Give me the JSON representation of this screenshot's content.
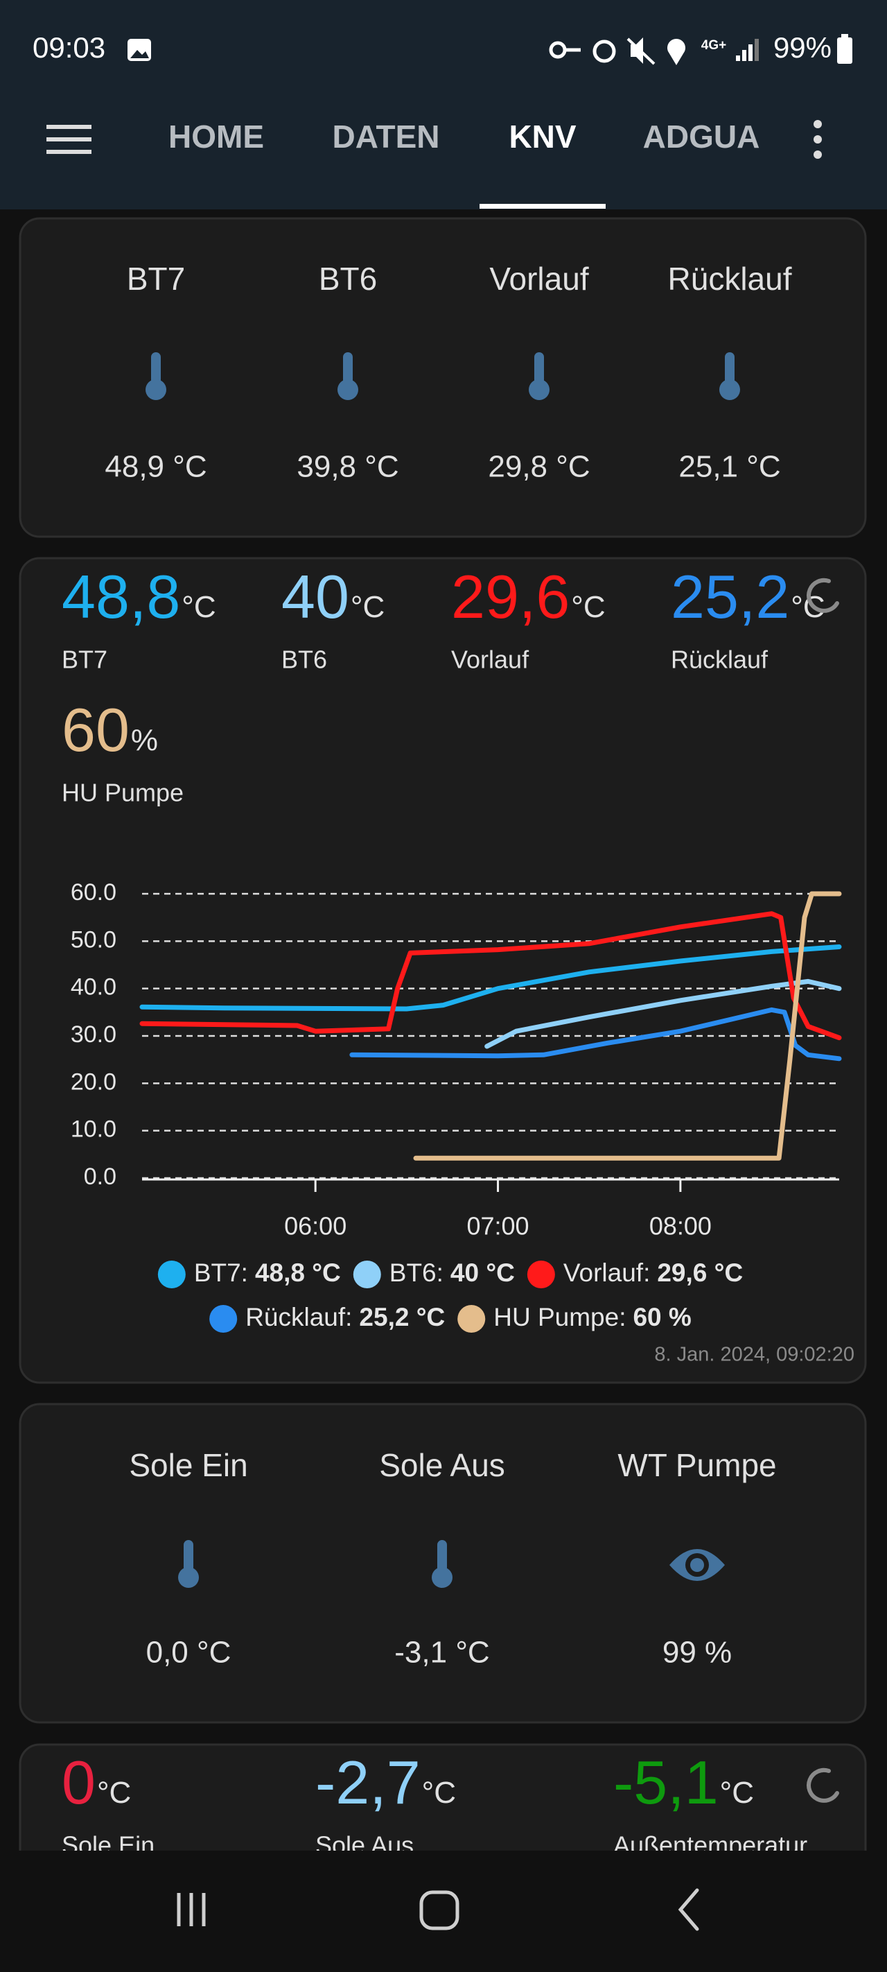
{
  "status_bar": {
    "time": "09:03",
    "network": "4G+",
    "battery": "99%"
  },
  "tabs": {
    "items": [
      "HOME",
      "DATEN",
      "KNV",
      "ADGUA"
    ],
    "active": 2
  },
  "sensor_card_1": {
    "items": [
      {
        "label": "BT7",
        "value": "48,9 °C",
        "icon": "thermometer"
      },
      {
        "label": "BT6",
        "value": "39,8 °C",
        "icon": "thermometer"
      },
      {
        "label": "Vorlauf",
        "value": "29,8 °C",
        "icon": "thermometer"
      },
      {
        "label": "Rücklauf",
        "value": "25,1 °C",
        "icon": "thermometer"
      }
    ]
  },
  "history_card_1": {
    "entities": [
      {
        "value": "48,8",
        "unit": "°C",
        "name": "BT7",
        "color": "#1eb0ef"
      },
      {
        "value": "40",
        "unit": "°C",
        "name": "BT6",
        "color": "#8fd0f8"
      },
      {
        "value": "29,6",
        "unit": "°C",
        "name": "Vorlauf",
        "color": "#ff1a1a"
      },
      {
        "value": "25,2",
        "unit": "°C",
        "name": "Rücklauf",
        "color": "#2a8cf0"
      },
      {
        "value": "60",
        "unit": "%",
        "name": "HU Pumpe",
        "color": "#e4bd8c"
      }
    ],
    "timestamp": "8. Jan. 2024, 09:02:20"
  },
  "chart_data": {
    "type": "line",
    "xlim": [
      5.05,
      8.87
    ],
    "xticks": [
      {
        "value": 6,
        "label": "06:00"
      },
      {
        "value": 7,
        "label": "07:00"
      },
      {
        "value": 8,
        "label": "08:00"
      }
    ],
    "ylim": [
      0,
      60
    ],
    "yticks": [
      {
        "value": 0,
        "label": "0.0"
      },
      {
        "value": 10,
        "label": "10.0"
      },
      {
        "value": 20,
        "label": "20.0"
      },
      {
        "value": 30,
        "label": "30.0"
      },
      {
        "value": 40,
        "label": "40.0"
      },
      {
        "value": 50,
        "label": "50.0"
      },
      {
        "value": 60,
        "label": "60.0"
      }
    ],
    "grid": true,
    "series": [
      {
        "name": "BT7:",
        "legend_value": "48,8 °C",
        "color": "#1eb0ef",
        "x": [
          5.05,
          5.5,
          6.0,
          6.5,
          6.7,
          7.0,
          7.5,
          8.0,
          8.5,
          8.87
        ],
        "values": [
          36.1,
          35.9,
          35.8,
          35.7,
          36.5,
          40.0,
          43.5,
          45.8,
          47.8,
          48.8
        ]
      },
      {
        "name": "BT6:",
        "legend_value": "40 °C",
        "color": "#8fd0f8",
        "x": [
          6.94,
          7.1,
          7.5,
          8.0,
          8.5,
          8.7,
          8.87
        ],
        "values": [
          27.8,
          31.0,
          34.0,
          37.5,
          40.5,
          41.5,
          40.0
        ]
      },
      {
        "name": "Vorlauf:",
        "legend_value": "29,6 °C",
        "color": "#ff1a1a",
        "x": [
          5.05,
          5.9,
          6.0,
          6.4,
          6.45,
          6.52,
          7.0,
          7.5,
          8.0,
          8.5,
          8.55,
          8.62,
          8.7,
          8.87
        ],
        "values": [
          32.6,
          32.2,
          31.0,
          31.5,
          40.0,
          47.5,
          48.2,
          49.5,
          53.0,
          55.8,
          55.0,
          38.0,
          32.0,
          29.6
        ]
      },
      {
        "name": "Rücklauf:",
        "legend_value": "25,2 °C",
        "color": "#2a8cf0",
        "x": [
          6.2,
          7.0,
          7.25,
          7.6,
          8.0,
          8.5,
          8.57,
          8.63,
          8.7,
          8.87
        ],
        "values": [
          26.0,
          25.8,
          26.0,
          28.5,
          31.0,
          35.5,
          35.0,
          28.0,
          26.0,
          25.2
        ]
      },
      {
        "name": "HU Pumpe:",
        "legend_value": "60 %",
        "color": "#e4bd8c",
        "x": [
          6.55,
          8.54,
          8.6,
          8.68,
          8.72,
          8.87
        ],
        "values": [
          4.2,
          4.2,
          25,
          55,
          60,
          60
        ]
      }
    ]
  },
  "sensor_card_2": {
    "items": [
      {
        "label": "Sole Ein",
        "value": "0,0 °C",
        "icon": "thermometer"
      },
      {
        "label": "Sole Aus",
        "value": "-3,1 °C",
        "icon": "thermometer"
      },
      {
        "label": "WT Pumpe",
        "value": "99 %",
        "icon": "eye"
      }
    ]
  },
  "history_card_2": {
    "entities": [
      {
        "value": "0",
        "unit": "°C",
        "name": "Sole Ein",
        "color": "#e8213f"
      },
      {
        "value": "-2,7",
        "unit": "°C",
        "name": "Sole Aus",
        "color": "#8fd0f8"
      },
      {
        "value": "-5,1",
        "unit": "°C",
        "name": "Außentemperatur",
        "color": "#0e9a0e"
      }
    ]
  }
}
